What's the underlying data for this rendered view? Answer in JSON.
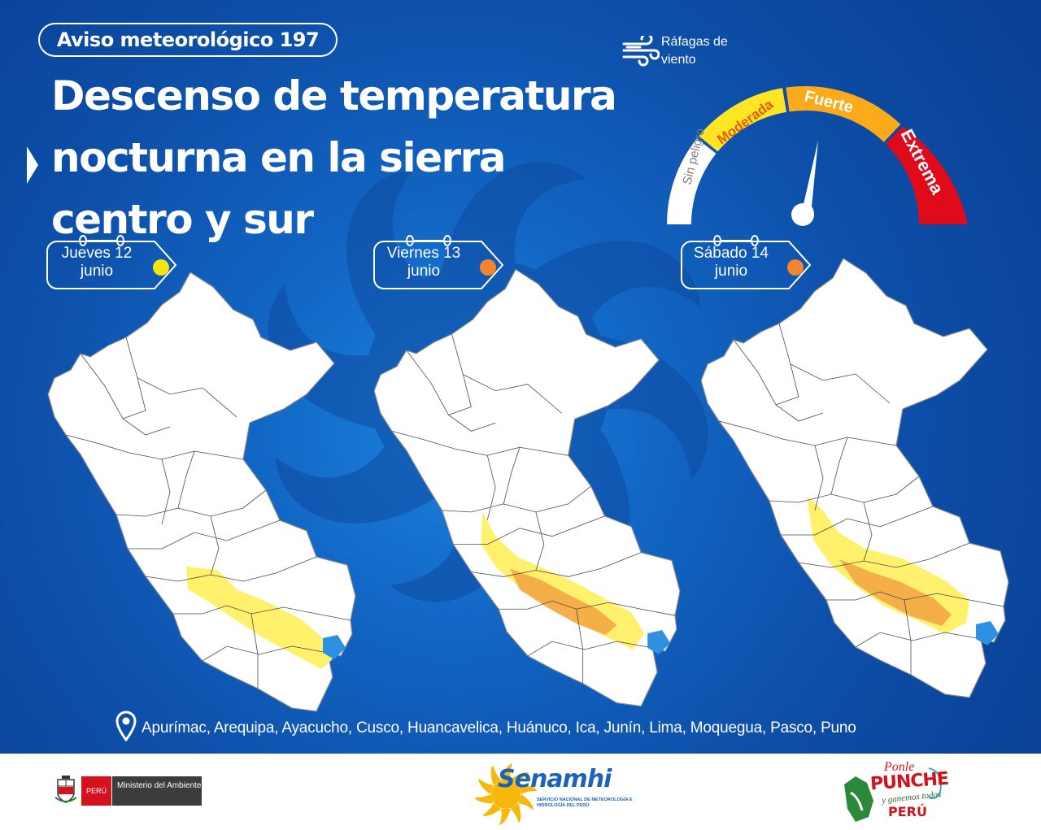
{
  "header": {
    "badge": "Aviso meteorológico 197",
    "title_lines": [
      "Descenso de temperatura",
      "nocturna en la sierra",
      "centro y sur"
    ]
  },
  "legend": {
    "wind_label": "Ráfagas de viento",
    "wind_icon": "wind-gust-icon",
    "levels": [
      {
        "label": "Sin peligro",
        "color": "#ffffff"
      },
      {
        "label": "Moderada",
        "color": "#ffe523"
      },
      {
        "label": "Fuerte",
        "color": "#fbaa1a"
      },
      {
        "label": "Extrema",
        "color": "#df0b1b"
      }
    ]
  },
  "days": [
    {
      "label": "Jueves 12",
      "month": "junio",
      "level_color": "#f5e613"
    },
    {
      "label": "Viernes 13",
      "month": "junio",
      "level_color": "#f2862e"
    },
    {
      "label": "Sábado 14",
      "month": "junio",
      "level_color": "#f2862e"
    }
  ],
  "map_colors": {
    "land": "#ffffff",
    "lake": "#2f8fe0",
    "moderate": "#fff064",
    "strong": "#f4ab47"
  },
  "regions": "Apurímac, Arequipa, Ayacucho, Cusco, Huancavelica, Huánuco, Ica, Junín, Lima, Moquegua, Pasco, Puno",
  "footer": {
    "minam_country": "PERÚ",
    "minam_name": "Ministerio del Ambiente",
    "senamhi_name": "Senamhi",
    "senamhi_sub": "SERVICIO NACIONAL DE METEOROLOGÍA E HIDROLOGÍA DEL PERÚ",
    "punche_1": "Ponle",
    "punche_2": "PUNCHE",
    "punche_3": "y ganemos todos",
    "punche_4": "PERÚ"
  }
}
